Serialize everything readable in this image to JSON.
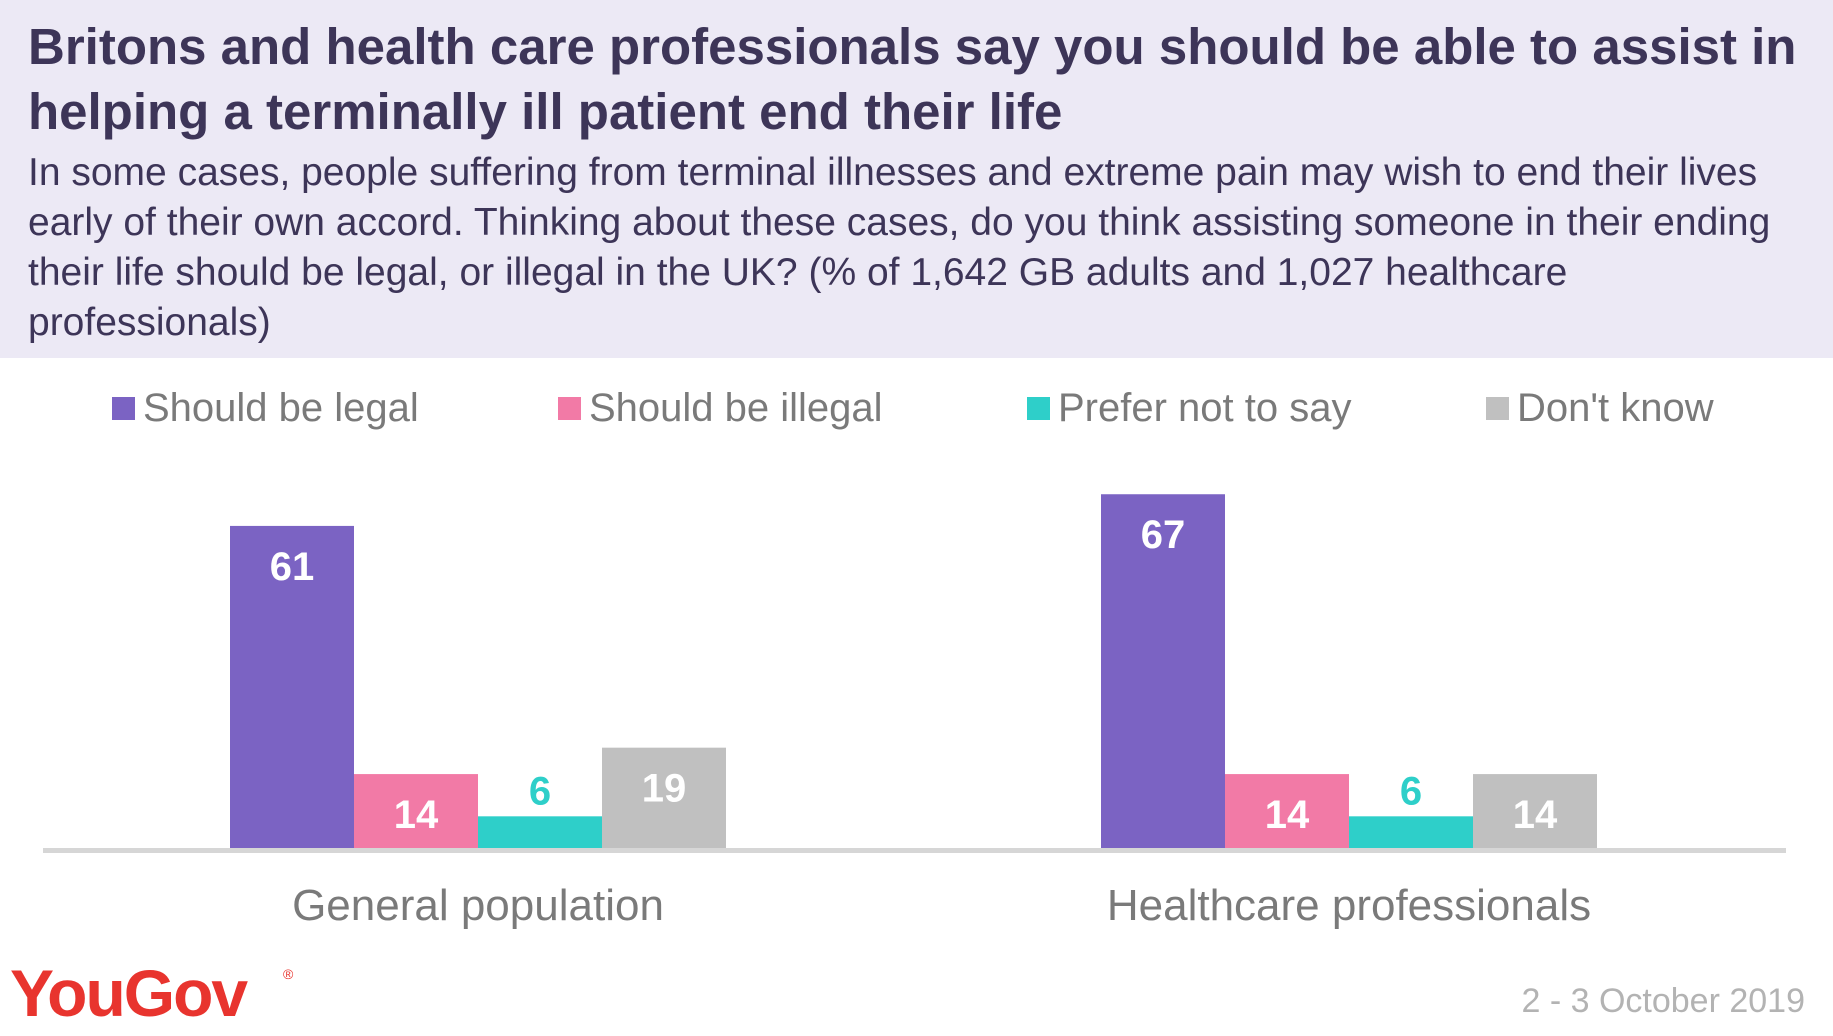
{
  "title": "Britons and health care professionals say you should be able to assist in helping a terminally ill patient end their life",
  "subtitle": "In some cases, people suffering from terminal illnesses and extreme pain may wish to end their lives early of their own accord. Thinking about these cases, do you think assisting someone in their ending their life should be legal, or illegal in the UK? (% of 1,642 GB adults and 1,027 healthcare professionals)",
  "brand": "YouGov",
  "brand_mark": "®",
  "date": "2 - 3 October 2019",
  "chart_data": {
    "type": "bar",
    "categories": [
      "General population",
      "Healthcare professionals"
    ],
    "series": [
      {
        "name": "Should be legal",
        "values": [
          61,
          67
        ],
        "color": "#7b63c3",
        "label_color": "#ffffff"
      },
      {
        "name": "Should be illegal",
        "values": [
          14,
          14
        ],
        "color": "#f27aa6",
        "label_color": "#ffffff"
      },
      {
        "name": "Prefer not to say",
        "values": [
          6,
          6
        ],
        "color": "#2ecfc9",
        "label_color": "#2ecfc9"
      },
      {
        "name": "Don't know",
        "values": [
          19,
          14
        ],
        "color": "#c0c0c0",
        "label_color": "#ffffff"
      }
    ],
    "ylim": [
      0,
      70
    ],
    "grid": false,
    "legend": "top"
  }
}
